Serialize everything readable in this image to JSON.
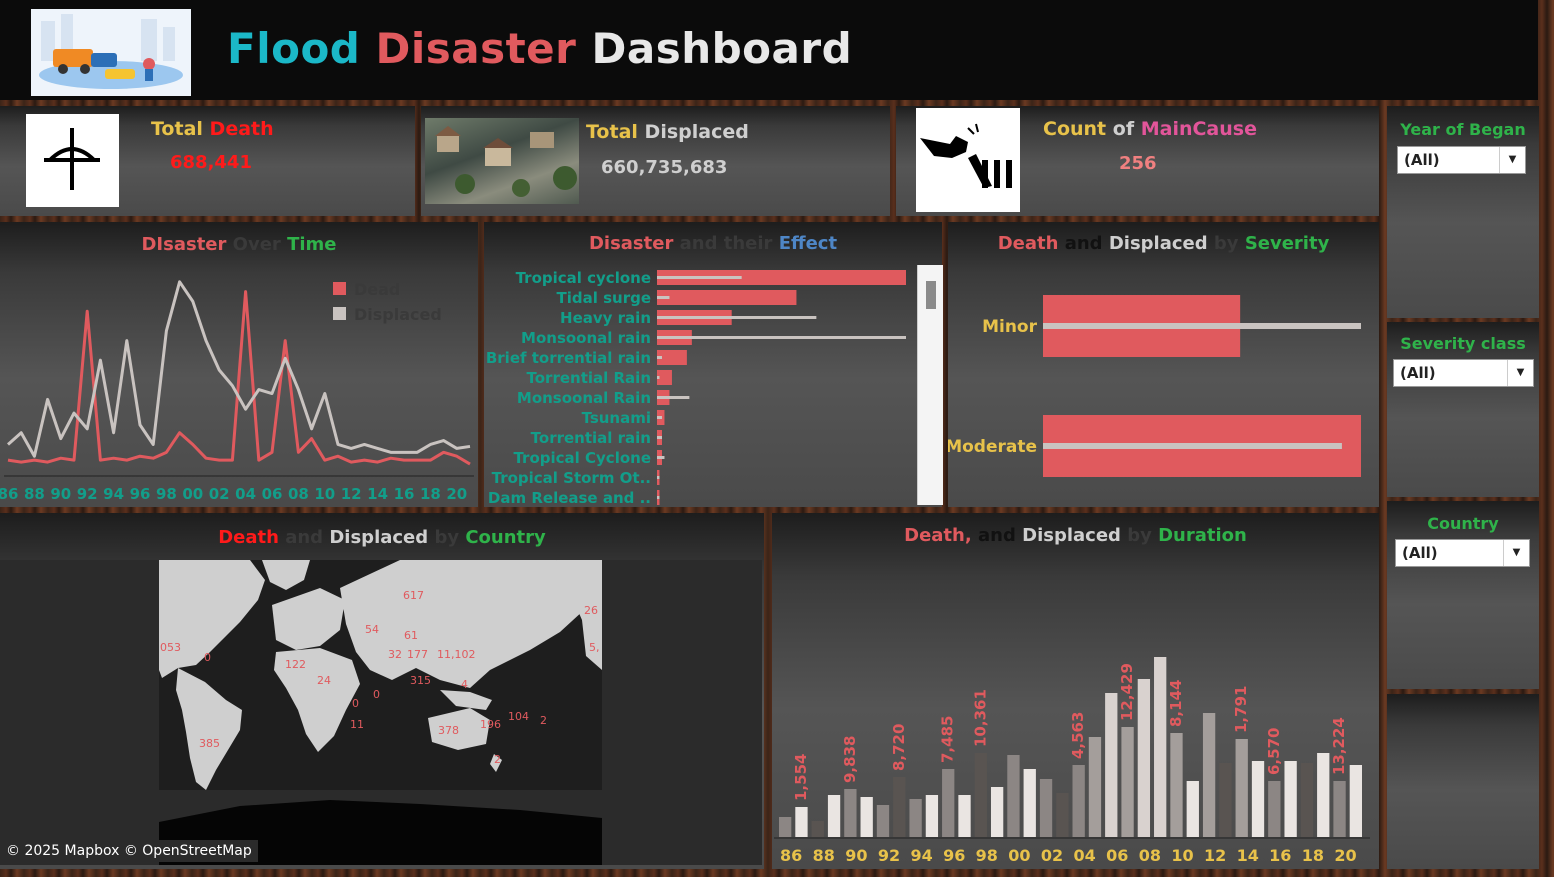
{
  "header": {
    "title_part1": "Flood",
    "title_part2": "Disaster",
    "title_part3": "Dashboard"
  },
  "kpis": {
    "death": {
      "label_a": "Total",
      "label_b": "Death",
      "value": "688,441"
    },
    "displaced": {
      "label_a": "Total",
      "label_b": "Displaced",
      "value": "660,735,683"
    },
    "cause": {
      "label_a": "Count",
      "label_of": "of",
      "label_b": "MainCause",
      "value": "256"
    }
  },
  "filters": {
    "year": {
      "label": "Year of Began",
      "value": "(All)"
    },
    "severity": {
      "label": "Severity class",
      "value": "(All)"
    },
    "country": {
      "label": "Country",
      "value": "(All)"
    }
  },
  "colors": {
    "dead": "#e05a5e",
    "displaced": "#c9c3c0",
    "teal_text": "#129e8a"
  },
  "over_time": {
    "title_a": "DIsaster",
    "title_b": "Over",
    "title_c": "Time",
    "legend": [
      "Dead",
      "Displaced"
    ],
    "chart_data": {
      "type": "line",
      "x": [
        "86",
        "87",
        "88",
        "89",
        "90",
        "91",
        "92",
        "93",
        "94",
        "95",
        "96",
        "97",
        "98",
        "99",
        "00",
        "01",
        "02",
        "03",
        "04",
        "05",
        "06",
        "07",
        "08",
        "09",
        "10",
        "11",
        "12",
        "13",
        "14",
        "15",
        "16",
        "17",
        "18",
        "19",
        "20",
        "21"
      ],
      "xtick_labels": [
        "86",
        "88",
        "90",
        "92",
        "94",
        "96",
        "98",
        "00",
        "02",
        "04",
        "06",
        "08",
        "10",
        "12",
        "14",
        "16",
        "18",
        "20"
      ],
      "series": [
        {
          "name": "Dead",
          "values": [
            4,
            3,
            4,
            3,
            5,
            4,
            80,
            4,
            5,
            4,
            6,
            5,
            8,
            18,
            12,
            5,
            4,
            4,
            90,
            4,
            8,
            65,
            8,
            15,
            4,
            6,
            3,
            4,
            3,
            5,
            4,
            4,
            4,
            8,
            6,
            2
          ]
        },
        {
          "name": "Displaced",
          "values": [
            12,
            18,
            6,
            35,
            15,
            28,
            20,
            55,
            18,
            65,
            22,
            12,
            70,
            95,
            85,
            65,
            50,
            42,
            30,
            40,
            38,
            56,
            40,
            20,
            38,
            12,
            10,
            12,
            10,
            8,
            8,
            8,
            12,
            14,
            10,
            11
          ]
        }
      ]
    }
  },
  "effect": {
    "title_a": "Disaster",
    "title_b": "and their",
    "title_c": "Effect",
    "chart_data": {
      "type": "bar",
      "categories": [
        "Tropical cyclone",
        "Tidal surge",
        "Heavy rain",
        "Monsoonal rain",
        "Brief torrential rain",
        "Torrential Rain",
        "Monsoonal Rain",
        "Tsunami",
        "Torrential rain",
        "Tropical Cyclone",
        "Tropical Storm Ot..",
        "Dam Release and .."
      ],
      "series": [
        {
          "name": "Dead",
          "values": [
            100,
            56,
            30,
            14,
            12,
            6,
            5,
            3,
            2,
            2,
            1,
            1
          ]
        },
        {
          "name": "Displaced",
          "values": [
            34,
            5,
            64,
            100,
            2,
            1,
            13,
            2,
            2,
            3,
            1,
            1
          ]
        }
      ],
      "xlim": [
        0,
        100
      ]
    }
  },
  "severity_chart": {
    "title_a": "Death",
    "title_b": "and",
    "title_c": "Displaced",
    "title_d": "by",
    "title_e": "Severity",
    "chart_data": {
      "type": "bar",
      "categories": [
        "Minor",
        "Moderate"
      ],
      "series": [
        {
          "name": "Dead",
          "values": [
            62,
            100
          ]
        },
        {
          "name": "Displaced",
          "values": [
            100,
            94
          ]
        }
      ],
      "xlim": [
        0,
        100
      ]
    }
  },
  "map": {
    "title_a": "Death",
    "title_b": "and",
    "title_c": "Displaced",
    "title_d": "by",
    "title_e": "Country",
    "attribution": "© 2025 Mapbox © OpenStreetMap",
    "labels": [
      "617",
      "26",
      "54",
      "61",
      "053",
      "0",
      "5,",
      "32",
      "177",
      "11,102",
      "122",
      "24",
      "315",
      "0",
      "4",
      "0",
      "11",
      "378",
      "196",
      "104",
      "2",
      "385",
      "2"
    ]
  },
  "duration": {
    "title_a": "Death,",
    "title_b": "and",
    "title_c": "Displaced",
    "title_d": "by",
    "title_e": "Duration",
    "chart_data": {
      "type": "bar",
      "x": [
        "86",
        "87",
        "88",
        "89",
        "90",
        "91",
        "92",
        "93",
        "94",
        "95",
        "96",
        "97",
        "98",
        "99",
        "00",
        "01",
        "02",
        "03",
        "04",
        "05",
        "06",
        "07",
        "08",
        "09",
        "10",
        "11",
        "12",
        "13",
        "14",
        "15",
        "16",
        "17",
        "18",
        "19",
        "20",
        "21"
      ],
      "xtick_labels": [
        "86",
        "88",
        "90",
        "92",
        "94",
        "96",
        "98",
        "00",
        "02",
        "04",
        "06",
        "08",
        "10",
        "12",
        "14",
        "16",
        "18",
        "20"
      ],
      "values": [
        10,
        15,
        8,
        21,
        24,
        20,
        16,
        30,
        19,
        21,
        34,
        21,
        42,
        25,
        41,
        34,
        29,
        22,
        36,
        50,
        72,
        55,
        79,
        90,
        52,
        28,
        62,
        37,
        49,
        38,
        28,
        38,
        37,
        42,
        28,
        36
      ],
      "value_labels": [
        {
          "x": "87",
          "label": "1,554"
        },
        {
          "x": "90",
          "label": "9,838"
        },
        {
          "x": "93",
          "label": "8,720"
        },
        {
          "x": "96",
          "label": "7,485"
        },
        {
          "x": "98",
          "label": "10,361"
        },
        {
          "x": "04",
          "label": "4,563"
        },
        {
          "x": "07",
          "label": "12,429"
        },
        {
          "x": "10",
          "label": "8,144"
        },
        {
          "x": "14",
          "label": "1,791"
        },
        {
          "x": "16",
          "label": "6,570"
        },
        {
          "x": "20",
          "label": "13,224"
        }
      ],
      "ylim": [
        0,
        100
      ]
    }
  }
}
